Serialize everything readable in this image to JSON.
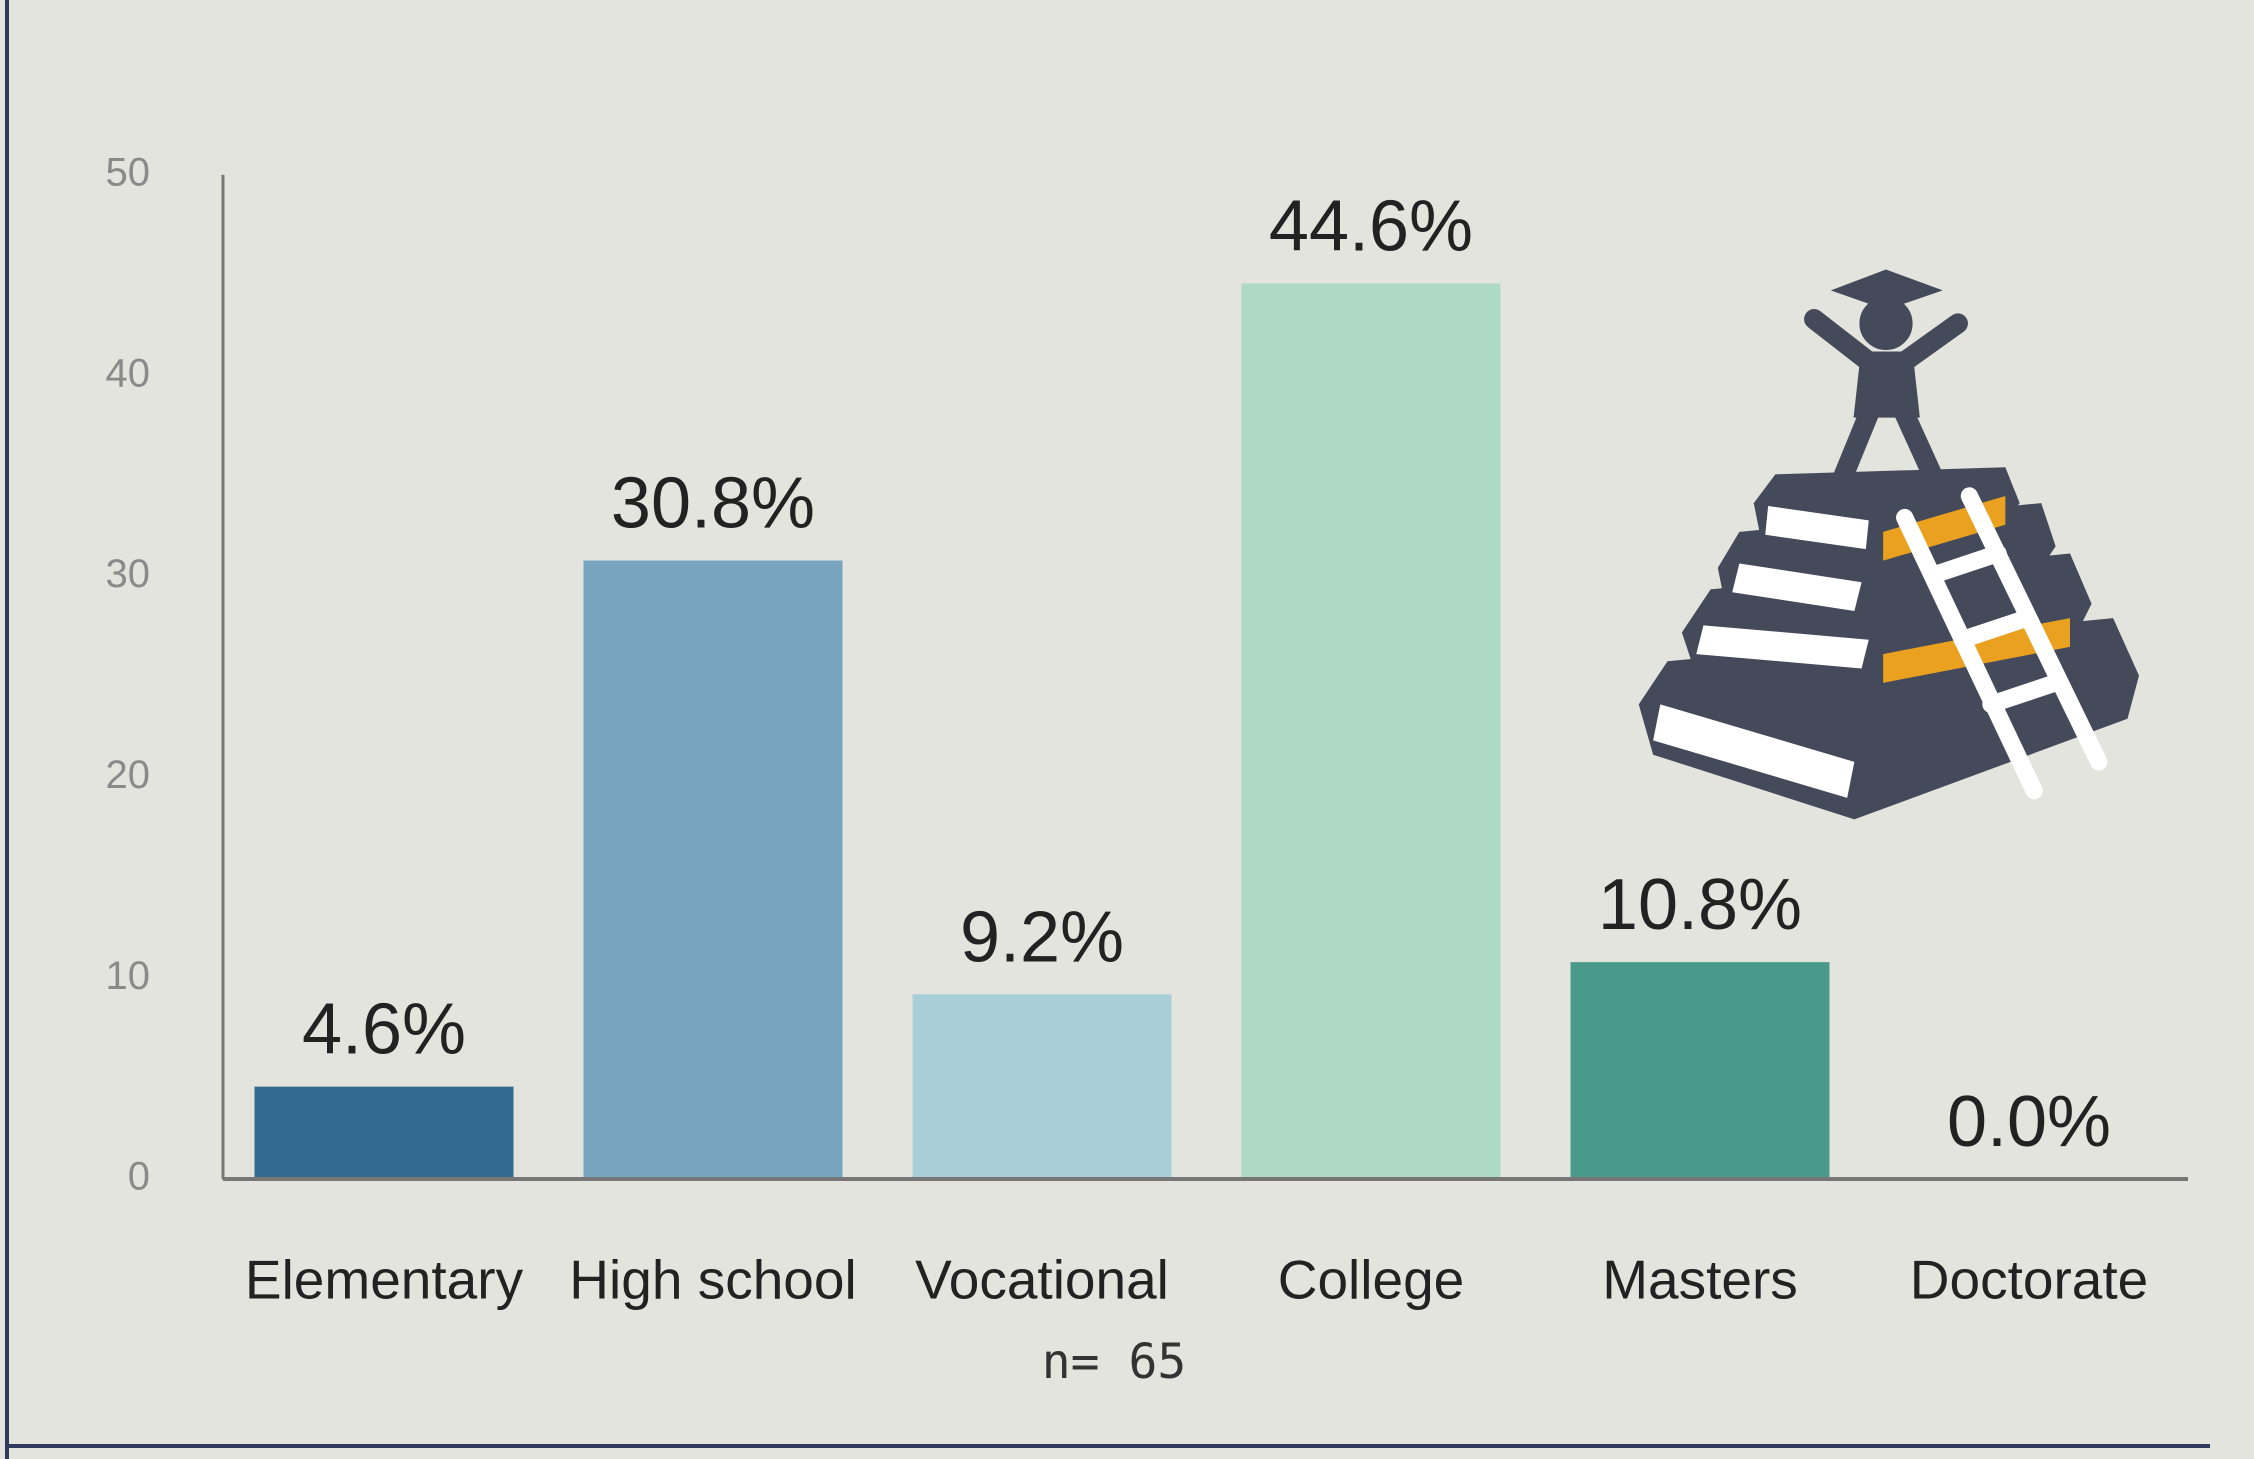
{
  "chart_data": {
    "type": "bar",
    "categories": [
      "Elementary",
      "High school",
      "Vocational",
      "College",
      "Masters",
      "Doctorate"
    ],
    "values": [
      4.6,
      30.8,
      9.2,
      44.6,
      10.8,
      0.0
    ],
    "value_labels": [
      "4.6%",
      "30.8%",
      "9.2%",
      "44.6%",
      "10.8%",
      "0.0%"
    ],
    "colors": [
      "#336a91",
      "#77a5bf",
      "#a8cfd7",
      "#aed9c5",
      "#4a9a8c",
      "#4a9a8c"
    ],
    "ylim": [
      0,
      50
    ],
    "yticks": [
      0,
      10,
      20,
      30,
      40,
      50
    ],
    "grid": false,
    "note": "n= 65"
  }
}
